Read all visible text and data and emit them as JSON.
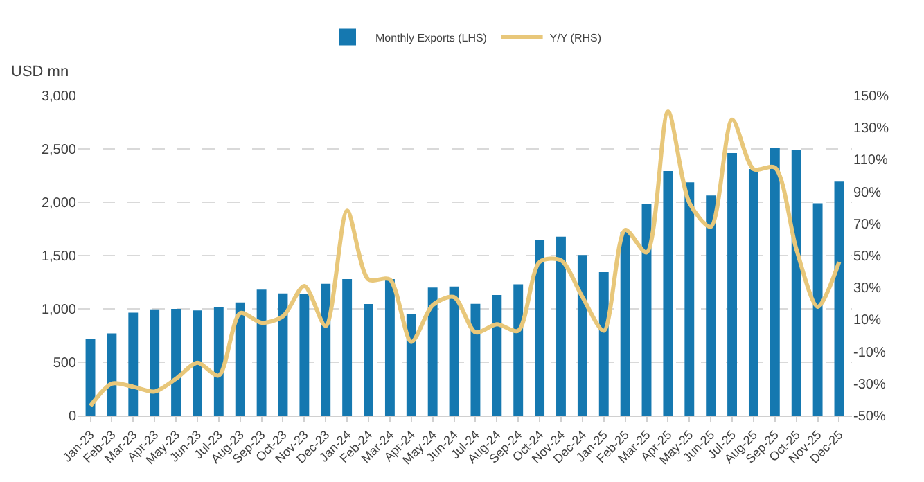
{
  "chart_data": {
    "type": "bar",
    "ylabel": "USD mn",
    "categories": [
      "Jan-23",
      "Feb-23",
      "Mar-23",
      "Apr-23",
      "May-23",
      "Jun-23",
      "Jul-23",
      "Aug-23",
      "Sep-23",
      "Oct-23",
      "Nov-23",
      "Dec-23",
      "Jan-24",
      "Feb-24",
      "Mar-24",
      "Apr-24",
      "May-24",
      "Jun-24",
      "Jul-24",
      "Aug-24",
      "Sep-24",
      "Oct-24",
      "Nov-24",
      "Dec-24",
      "Jan-25",
      "Feb-25",
      "Mar-25",
      "Apr-25",
      "May-25",
      "Jun-25",
      "Jul-25",
      "Aug-25",
      "Sep-25",
      "Oct-25",
      "Nov-25",
      "Dec-25"
    ],
    "series": [
      {
        "name": "Monthly Exports (LHS)",
        "color": "#1578b0",
        "values": [
          715,
          770,
          965,
          995,
          1000,
          985,
          1020,
          1060,
          1180,
          1145,
          1140,
          1235,
          1280,
          1045,
          1280,
          955,
          1200,
          1210,
          1047,
          1130,
          1230,
          1650,
          1677,
          1505,
          1345,
          1720,
          1980,
          2293,
          2186,
          2063,
          2461,
          2312,
          2507,
          2491,
          1991,
          2193
        ]
      },
      {
        "name": "Y/Y (RHS)",
        "type": "line",
        "axis": "y2",
        "color": "#e8c77a",
        "values": [
          -44,
          -30,
          -32,
          -35,
          -27,
          -17,
          -25,
          14,
          8,
          12,
          31,
          6,
          78,
          35,
          35,
          -4,
          19,
          24,
          2,
          7,
          3,
          46,
          47,
          24,
          3,
          66,
          52,
          140,
          83,
          68,
          135,
          104,
          105,
          54,
          18,
          46
        ]
      }
    ],
    "ylim": [
      0,
      3000
    ],
    "yticks": [
      {
        "value": 0,
        "label": "0"
      },
      {
        "value": 500,
        "label": "500"
      },
      {
        "value": 1000,
        "label": "1,000"
      },
      {
        "value": 1500,
        "label": "1,500"
      },
      {
        "value": 2000,
        "label": "2,000"
      },
      {
        "value": 2500,
        "label": "2,500"
      },
      {
        "value": 3000,
        "label": "3,000"
      }
    ],
    "y2lim": [
      -50,
      150
    ],
    "y2ticks": [
      {
        "value": -50,
        "label": "-50%"
      },
      {
        "value": -30,
        "label": "-30%"
      },
      {
        "value": -10,
        "label": "-10%"
      },
      {
        "value": 10,
        "label": "10%"
      },
      {
        "value": 30,
        "label": "30%"
      },
      {
        "value": 50,
        "label": "50%"
      },
      {
        "value": 70,
        "label": "70%"
      },
      {
        "value": 90,
        "label": "90%"
      },
      {
        "value": 110,
        "label": "110%"
      },
      {
        "value": 130,
        "label": "130%"
      },
      {
        "value": 150,
        "label": "150%"
      }
    ],
    "grid": "y",
    "legend": "top",
    "marker": "none",
    "line_style": "solid"
  }
}
